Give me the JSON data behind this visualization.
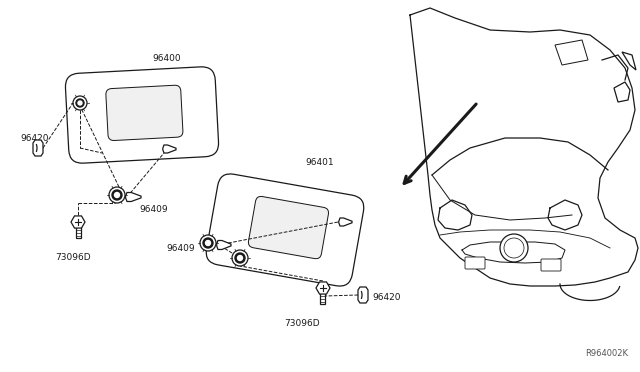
{
  "bg_color": "#ffffff",
  "line_color": "#1a1a1a",
  "label_color": "#1a1a1a",
  "font_size": 6.5,
  "watermark": "R964002K",
  "parts": {
    "visor1_label": "96400",
    "visor2_label": "96401",
    "clip_label": "96420",
    "bracket1_label": "96409",
    "bracket2_label": "96409",
    "screw_label": "73096D"
  }
}
